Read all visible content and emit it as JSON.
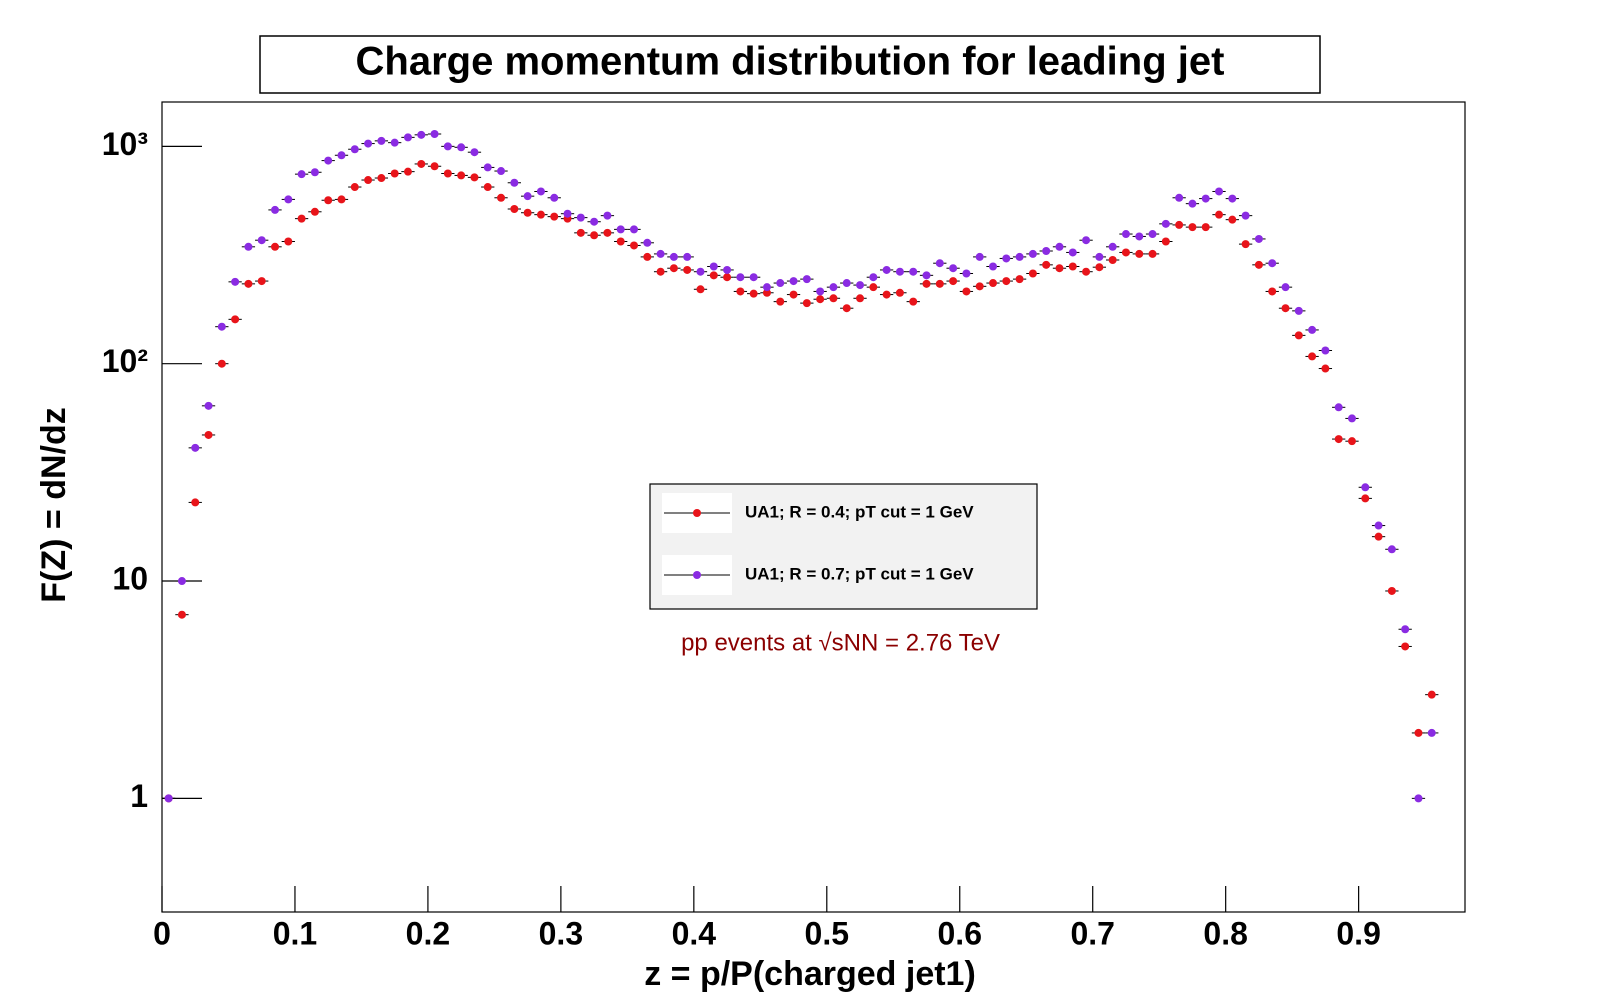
{
  "chart_data": {
    "type": "scatter",
    "title": "Charge momentum distribution for leading jet",
    "xlabel": "z = p/P(charged jet1)",
    "ylabel": "F(Z) = dN/dz",
    "annotation": "pp events at √sNN = 2.76 TeV",
    "log_y": true,
    "legend_position": "center",
    "xlim": [
      0,
      0.98
    ],
    "ylim": [
      0.3,
      1600
    ],
    "xticks": [
      0,
      0.1,
      0.2,
      0.3,
      0.4,
      0.5,
      0.6,
      0.7,
      0.8,
      0.9
    ],
    "yticks": [
      1,
      10,
      {
        "value": 100,
        "label": "10²"
      },
      {
        "value": 1000,
        "label": "10³"
      }
    ],
    "x": [
      0.005,
      0.015,
      0.025,
      0.035,
      0.045,
      0.055,
      0.065,
      0.075,
      0.085,
      0.095,
      0.105,
      0.115,
      0.125,
      0.135,
      0.145,
      0.155,
      0.165,
      0.175,
      0.185,
      0.195,
      0.205,
      0.215,
      0.225,
      0.235,
      0.245,
      0.255,
      0.265,
      0.275,
      0.285,
      0.295,
      0.305,
      0.315,
      0.325,
      0.335,
      0.345,
      0.355,
      0.365,
      0.375,
      0.385,
      0.395,
      0.405,
      0.415,
      0.425,
      0.435,
      0.445,
      0.455,
      0.465,
      0.475,
      0.485,
      0.495,
      0.505,
      0.515,
      0.525,
      0.535,
      0.545,
      0.555,
      0.565,
      0.575,
      0.585,
      0.595,
      0.605,
      0.615,
      0.625,
      0.635,
      0.645,
      0.655,
      0.665,
      0.675,
      0.685,
      0.695,
      0.705,
      0.715,
      0.725,
      0.735,
      0.745,
      0.755,
      0.765,
      0.775,
      0.785,
      0.795,
      0.805,
      0.815,
      0.825,
      0.835,
      0.845,
      0.855,
      0.865,
      0.875,
      0.885,
      0.895,
      0.905,
      0.915,
      0.925,
      0.935,
      0.945,
      0.955
    ],
    "series": [
      {
        "name": "UA1; R = 0.4; pT cut = 1 GeV",
        "color": "#e8141a",
        "values": [
          1,
          7,
          23,
          47,
          100,
          160,
          233,
          240,
          345,
          365,
          465,
          500,
          565,
          570,
          650,
          700,
          715,
          750,
          765,
          830,
          810,
          750,
          735,
          720,
          650,
          580,
          515,
          495,
          485,
          475,
          465,
          400,
          390,
          400,
          365,
          350,
          310,
          265,
          275,
          270,
          220,
          255,
          250,
          215,
          210,
          212,
          193,
          208,
          190,
          198,
          200,
          180,
          200,
          225,
          208,
          212,
          193,
          233,
          233,
          240,
          215,
          227,
          235,
          240,
          245,
          260,
          285,
          275,
          280,
          265,
          278,
          300,
          325,
          320,
          320,
          365,
          435,
          425,
          425,
          485,
          460,
          355,
          285,
          215,
          180,
          135,
          108,
          95,
          45,
          44,
          24,
          16,
          9,
          5,
          2,
          3
        ]
      },
      {
        "name": "UA1; R = 0.7; pT cut = 1 GeV",
        "color": "#8a2be2",
        "values": [
          1,
          10,
          41,
          64,
          148,
          238,
          345,
          370,
          510,
          570,
          745,
          760,
          860,
          910,
          970,
          1030,
          1060,
          1040,
          1100,
          1130,
          1140,
          1000,
          990,
          940,
          800,
          770,
          680,
          590,
          620,
          580,
          490,
          470,
          450,
          480,
          415,
          415,
          360,
          320,
          310,
          310,
          265,
          280,
          270,
          250,
          250,
          225,
          235,
          240,
          245,
          215,
          225,
          235,
          230,
          250,
          270,
          265,
          265,
          255,
          290,
          275,
          260,
          310,
          280,
          305,
          310,
          320,
          330,
          345,
          325,
          370,
          310,
          345,
          395,
          385,
          395,
          440,
          580,
          545,
          575,
          620,
          575,
          480,
          375,
          290,
          225,
          175,
          143,
          115,
          63,
          56,
          27,
          18,
          14,
          6,
          1,
          2
        ]
      }
    ]
  }
}
